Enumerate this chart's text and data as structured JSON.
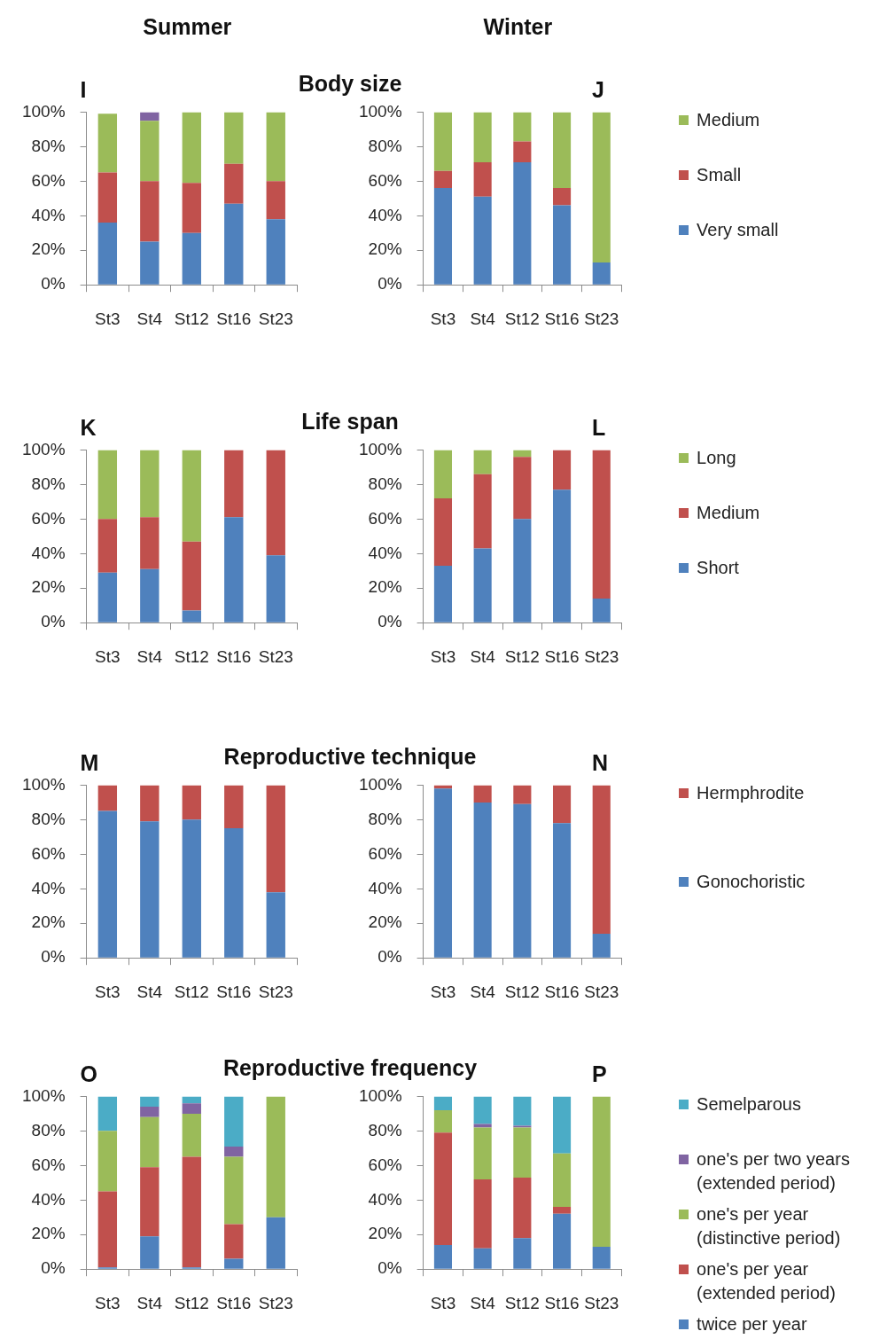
{
  "chart_data": [
    {
      "type": "bar",
      "stacked": true,
      "title": "I",
      "subtitle": "Body size",
      "annotations": [
        "Summer"
      ],
      "categories": [
        "St3",
        "St4",
        "St12",
        "St16",
        "St23"
      ],
      "series": [
        {
          "color": "#4f81bd",
          "values": [
            36,
            25,
            30,
            47,
            38
          ]
        },
        {
          "color": "#c0504d",
          "values": [
            29,
            35,
            29,
            23,
            22
          ]
        },
        {
          "color": "#9bbb59",
          "values": [
            34,
            35,
            41,
            30,
            40
          ]
        },
        {
          "color": "#8064a2",
          "values": [
            0,
            5,
            0,
            0,
            0
          ]
        }
      ],
      "ylim": [
        0,
        100
      ],
      "yticks": [
        {
          "value": 0,
          "label": "0%"
        },
        {
          "value": 20,
          "label": "20%"
        },
        {
          "value": 40,
          "label": "40%"
        },
        {
          "value": 60,
          "label": "60%"
        },
        {
          "value": 80,
          "label": "80%"
        },
        {
          "value": 100,
          "label": "100%"
        }
      ]
    },
    {
      "type": "bar",
      "stacked": true,
      "title": "J",
      "annotations": [
        "Winter"
      ],
      "legend": "right",
      "categories": [
        "St3",
        "St4",
        "St12",
        "St16",
        "St23"
      ],
      "series": [
        {
          "name": "Very small",
          "color": "#4f81bd",
          "values": [
            56,
            51,
            71,
            46,
            13
          ]
        },
        {
          "name": "Small",
          "color": "#c0504d",
          "values": [
            10,
            20,
            12,
            10,
            0
          ]
        },
        {
          "name": "Medium",
          "color": "#9bbb59",
          "values": [
            34,
            29,
            17,
            44,
            87
          ]
        }
      ],
      "ylim": [
        0,
        100
      ],
      "yticks": [
        {
          "value": 0,
          "label": "0%"
        },
        {
          "value": 20,
          "label": "20%"
        },
        {
          "value": 40,
          "label": "40%"
        },
        {
          "value": 60,
          "label": "60%"
        },
        {
          "value": 80,
          "label": "80%"
        },
        {
          "value": 100,
          "label": "100%"
        }
      ]
    },
    {
      "type": "bar",
      "stacked": true,
      "title": "K",
      "subtitle": "Life span",
      "categories": [
        "St3",
        "St4",
        "St12",
        "St16",
        "St23"
      ],
      "series": [
        {
          "color": "#4f81bd",
          "values": [
            29,
            31,
            7,
            61,
            39
          ]
        },
        {
          "color": "#c0504d",
          "values": [
            31,
            30,
            40,
            39,
            61
          ]
        },
        {
          "color": "#9bbb59",
          "values": [
            40,
            39,
            53,
            0,
            0
          ]
        }
      ],
      "ylim": [
        0,
        100
      ],
      "yticks": [
        {
          "value": 0,
          "label": "0%"
        },
        {
          "value": 20,
          "label": "20%"
        },
        {
          "value": 40,
          "label": "40%"
        },
        {
          "value": 60,
          "label": "60%"
        },
        {
          "value": 80,
          "label": "80%"
        },
        {
          "value": 100,
          "label": "100%"
        }
      ]
    },
    {
      "type": "bar",
      "stacked": true,
      "title": "L",
      "legend": "right",
      "categories": [
        "St3",
        "St4",
        "St12",
        "St16",
        "St23"
      ],
      "series": [
        {
          "name": "Short",
          "color": "#4f81bd",
          "values": [
            33,
            43,
            60,
            77,
            14
          ]
        },
        {
          "name": "Medium",
          "color": "#c0504d",
          "values": [
            39,
            43,
            36,
            23,
            86
          ]
        },
        {
          "name": "Long",
          "color": "#9bbb59",
          "values": [
            28,
            14,
            4,
            0,
            0
          ]
        }
      ],
      "ylim": [
        0,
        100
      ],
      "yticks": [
        {
          "value": 0,
          "label": "0%"
        },
        {
          "value": 20,
          "label": "20%"
        },
        {
          "value": 40,
          "label": "40%"
        },
        {
          "value": 60,
          "label": "60%"
        },
        {
          "value": 80,
          "label": "80%"
        },
        {
          "value": 100,
          "label": "100%"
        }
      ]
    },
    {
      "type": "bar",
      "stacked": true,
      "title": "M",
      "subtitle": "Reproductive technique",
      "categories": [
        "St3",
        "St4",
        "St12",
        "St16",
        "St23"
      ],
      "series": [
        {
          "color": "#4f81bd",
          "values": [
            85,
            79,
            80,
            75,
            38
          ]
        },
        {
          "color": "#c0504d",
          "values": [
            15,
            21,
            20,
            25,
            62
          ]
        }
      ],
      "ylim": [
        0,
        100
      ],
      "yticks": [
        {
          "value": 0,
          "label": "0%"
        },
        {
          "value": 20,
          "label": "20%"
        },
        {
          "value": 40,
          "label": "40%"
        },
        {
          "value": 60,
          "label": "60%"
        },
        {
          "value": 80,
          "label": "80%"
        },
        {
          "value": 100,
          "label": "100%"
        }
      ]
    },
    {
      "type": "bar",
      "stacked": true,
      "title": "N",
      "legend": "right",
      "categories": [
        "St3",
        "St4",
        "St12",
        "St16",
        "St23"
      ],
      "series": [
        {
          "name": "Gonochoristic",
          "color": "#4f81bd",
          "values": [
            98,
            90,
            89,
            78,
            14
          ]
        },
        {
          "name": "Hermphrodite",
          "color": "#c0504d",
          "values": [
            2,
            10,
            11,
            22,
            86
          ]
        }
      ],
      "ylim": [
        0,
        100
      ],
      "yticks": [
        {
          "value": 0,
          "label": "0%"
        },
        {
          "value": 20,
          "label": "20%"
        },
        {
          "value": 40,
          "label": "40%"
        },
        {
          "value": 60,
          "label": "60%"
        },
        {
          "value": 80,
          "label": "80%"
        },
        {
          "value": 100,
          "label": "100%"
        }
      ]
    },
    {
      "type": "bar",
      "stacked": true,
      "title": "O",
      "subtitle": "Reproductive frequency",
      "categories": [
        "St3",
        "St4",
        "St12",
        "St16",
        "St23"
      ],
      "series": [
        {
          "color": "#4f81bd",
          "values": [
            1,
            19,
            1,
            6,
            30
          ]
        },
        {
          "color": "#c0504d",
          "values": [
            44,
            40,
            64,
            20,
            0
          ]
        },
        {
          "color": "#9bbb59",
          "values": [
            35,
            29,
            25,
            39,
            70
          ]
        },
        {
          "color": "#8064a2",
          "values": [
            0,
            6,
            6,
            6,
            0
          ]
        },
        {
          "color": "#4bacc6",
          "values": [
            20,
            6,
            4,
            29,
            0
          ]
        }
      ],
      "ylim": [
        0,
        100
      ],
      "yticks": [
        {
          "value": 0,
          "label": "0%"
        },
        {
          "value": 20,
          "label": "20%"
        },
        {
          "value": 40,
          "label": "40%"
        },
        {
          "value": 60,
          "label": "60%"
        },
        {
          "value": 80,
          "label": "80%"
        },
        {
          "value": 100,
          "label": "100%"
        }
      ]
    },
    {
      "type": "bar",
      "stacked": true,
      "title": "P",
      "legend": "right",
      "categories": [
        "St3",
        "St4",
        "St12",
        "St16",
        "St23"
      ],
      "series": [
        {
          "name": "twice per year",
          "color": "#4f81bd",
          "values": [
            14,
            12,
            18,
            32,
            13
          ]
        },
        {
          "name": "one's per year (extended period)",
          "color": "#c0504d",
          "values": [
            65,
            40,
            35,
            4,
            0
          ]
        },
        {
          "name": "one's per year (distinctive period)",
          "color": "#9bbb59",
          "values": [
            13,
            30,
            29,
            31,
            87
          ]
        },
        {
          "name": "one's per two years (extended period)",
          "color": "#8064a2",
          "values": [
            0,
            2,
            1,
            0,
            0
          ]
        },
        {
          "name": "Semelparous",
          "color": "#4bacc6",
          "values": [
            8,
            16,
            17,
            33,
            0
          ]
        }
      ],
      "ylim": [
        0,
        100
      ],
      "yticks": [
        {
          "value": 0,
          "label": "0%"
        },
        {
          "value": 20,
          "label": "20%"
        },
        {
          "value": 40,
          "label": "40%"
        },
        {
          "value": 60,
          "label": "60%"
        },
        {
          "value": 80,
          "label": "80%"
        },
        {
          "value": 100,
          "label": "100%"
        }
      ]
    }
  ]
}
